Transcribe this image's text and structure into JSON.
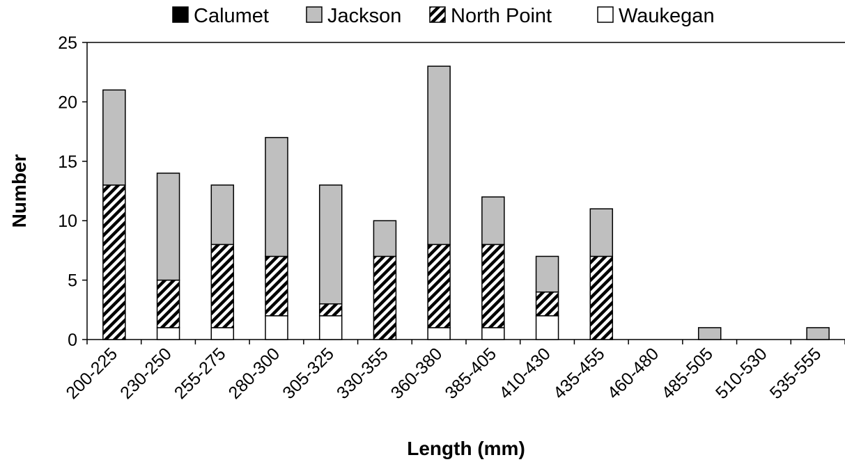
{
  "chart_data": {
    "type": "bar",
    "stacked": true,
    "title": "",
    "xlabel": "Length (mm)",
    "ylabel": "Number",
    "ylim": [
      0,
      25
    ],
    "yticks": [
      0,
      5,
      10,
      15,
      20,
      25
    ],
    "grid": false,
    "legend_position": "top",
    "categories": [
      "200-225",
      "230-250",
      "255-275",
      "280-300",
      "305-325",
      "330-355",
      "360-380",
      "385-405",
      "410-430",
      "435-455",
      "460-480",
      "485-505",
      "510-530",
      "535-555"
    ],
    "series": [
      {
        "name": "Calumet",
        "fill": "solid",
        "color": "#000000",
        "values": [
          0,
          0,
          0,
          0,
          0,
          0,
          0,
          0,
          0,
          0,
          0,
          0,
          0,
          0
        ]
      },
      {
        "name": "Jackson",
        "fill": "solid",
        "color": "#bfbfbf",
        "values": [
          8,
          9,
          5,
          10,
          10,
          3,
          15,
          4,
          3,
          4,
          0,
          1,
          0,
          1
        ]
      },
      {
        "name": "North Point",
        "fill": "hatch",
        "color": "#000000",
        "values": [
          13,
          4,
          7,
          5,
          1,
          7,
          7,
          7,
          2,
          7,
          0,
          0,
          0,
          0
        ]
      },
      {
        "name": "Waukegan",
        "fill": "solid",
        "color": "#ffffff",
        "values": [
          0,
          1,
          1,
          2,
          2,
          0,
          1,
          1,
          2,
          0,
          0,
          0,
          0,
          0
        ]
      }
    ],
    "stack_order_bottom_to_top": [
      "Waukegan",
      "North Point",
      "Jackson",
      "Calumet"
    ]
  }
}
